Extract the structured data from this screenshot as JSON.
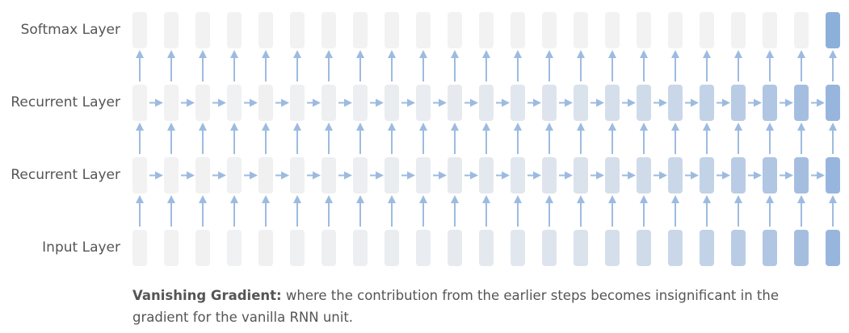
{
  "layers": [
    {
      "key": "softmax",
      "label": "Softmax Layer"
    },
    {
      "key": "recurrent2",
      "label": "Recurrent Layer"
    },
    {
      "key": "recurrent1",
      "label": "Recurrent Layer"
    },
    {
      "key": "input",
      "label": "Input Layer"
    }
  ],
  "timesteps": 23,
  "colors": {
    "cell_base": "#f2f2f2",
    "cell_highlight": "#94b3dc",
    "cell_final": "#8db0da",
    "arrow": "#9dbbe0",
    "text": "#555555"
  },
  "caption": {
    "bold": "Vanishing Gradient:",
    "text": " where the contribution from the earlier steps becomes insignificant in the gradient for the vanilla RNN unit."
  }
}
